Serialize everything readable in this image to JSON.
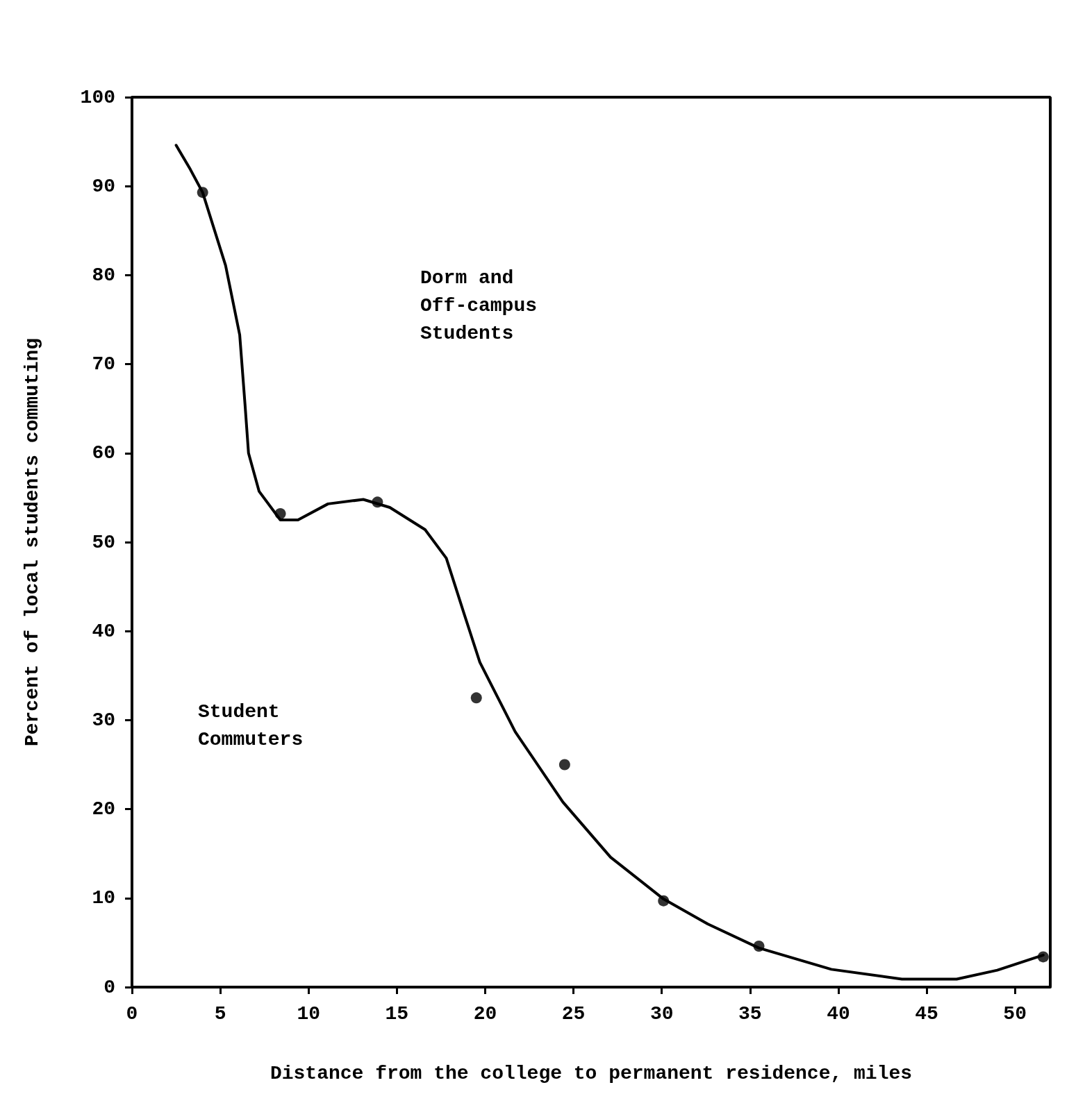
{
  "chart_data": {
    "type": "line",
    "xlabel": "Distance from the college to permanent residence, miles",
    "ylabel": "Percent of local students commuting",
    "xlim": [
      0,
      52
    ],
    "ylim": [
      0,
      100
    ],
    "xticks": [
      0,
      5,
      10,
      15,
      20,
      25,
      30,
      35,
      40,
      45,
      50
    ],
    "yticks": [
      0,
      10,
      20,
      30,
      40,
      50,
      60,
      70,
      80,
      90,
      100
    ],
    "grid": false,
    "series": [
      {
        "color": "#000000",
        "marker": "none",
        "line_style": "solid",
        "x": [
          2.5,
          3.3,
          4.0,
          5.3,
          6.1,
          6.4,
          6.6,
          7.2,
          8.4,
          9.4,
          11.1,
          13.1,
          14.6,
          16.6,
          17.8,
          18.8,
          19.7,
          21.7,
          24.4,
          27.1,
          30.1,
          32.6,
          35.5,
          39.6,
          43.6,
          46.7,
          49.0,
          51.6
        ],
        "values": [
          94.6,
          91.9,
          89.3,
          81.1,
          73.3,
          65.5,
          60.0,
          55.7,
          52.5,
          52.5,
          54.3,
          54.8,
          53.9,
          51.4,
          48.2,
          42.0,
          36.5,
          28.7,
          20.8,
          14.6,
          9.9,
          7.1,
          4.4,
          2.0,
          0.9,
          0.9,
          1.9,
          3.6
        ]
      },
      {
        "type": "scatter",
        "color": "#000000",
        "marker": "circle",
        "x": [
          4.0,
          8.4,
          13.9,
          19.5,
          24.5,
          30.1,
          35.5,
          51.6
        ],
        "values": [
          89.3,
          53.2,
          54.5,
          32.5,
          25.0,
          9.7,
          4.6,
          3.4
        ]
      }
    ],
    "annotations": [
      "Dorm and\nOff-campus\nStudents",
      "Student\nCommuters"
    ]
  }
}
